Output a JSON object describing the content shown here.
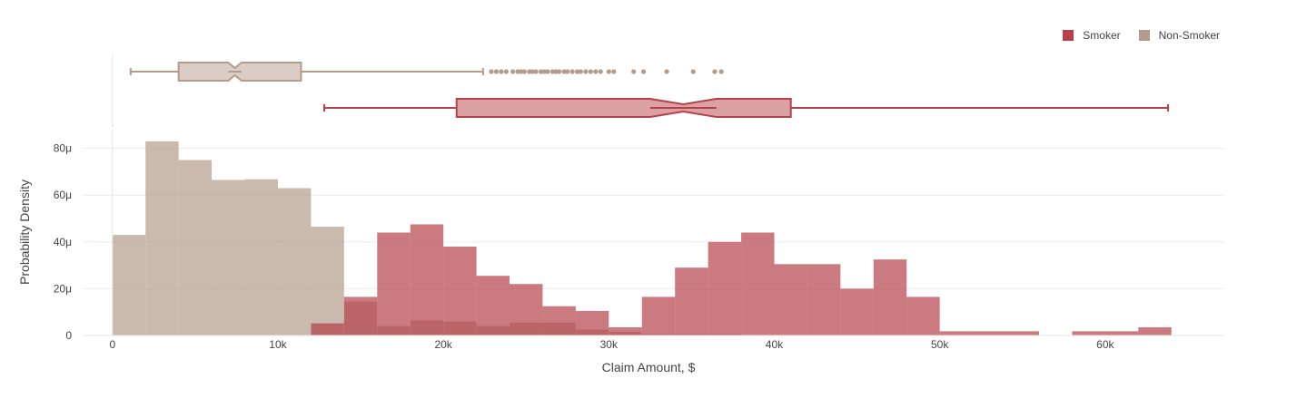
{
  "chart_data": {
    "type": "histogram",
    "xlabel": "Claim Amount, $",
    "ylabel": "Probability Density",
    "xlim": [
      -1800,
      67200
    ],
    "ylim": [
      0,
      88
    ],
    "y_unit": "μ",
    "x_ticks": [
      {
        "value": 0,
        "label": "0"
      },
      {
        "value": 10000,
        "label": "10k"
      },
      {
        "value": 20000,
        "label": "20k"
      },
      {
        "value": 30000,
        "label": "30k"
      },
      {
        "value": 40000,
        "label": "40k"
      },
      {
        "value": 50000,
        "label": "50k"
      },
      {
        "value": 60000,
        "label": "60k"
      }
    ],
    "y_ticks": [
      {
        "value": 0,
        "label": "0"
      },
      {
        "value": 20,
        "label": "20μ"
      },
      {
        "value": 40,
        "label": "40μ"
      },
      {
        "value": 60,
        "label": "60μ"
      },
      {
        "value": 80,
        "label": "80μ"
      }
    ],
    "grid": true,
    "legend_position": "top-right",
    "bin_width": 2000,
    "series": [
      {
        "name": "Smoker",
        "color": "#b5424a",
        "bins": [
          {
            "x0": 12000,
            "y": 5.2
          },
          {
            "x0": 14000,
            "y": 16.5
          },
          {
            "x0": 16000,
            "y": 44
          },
          {
            "x0": 18000,
            "y": 47.5
          },
          {
            "x0": 20000,
            "y": 38
          },
          {
            "x0": 22000,
            "y": 25.5
          },
          {
            "x0": 24000,
            "y": 22
          },
          {
            "x0": 26000,
            "y": 12.5
          },
          {
            "x0": 28000,
            "y": 10.5
          },
          {
            "x0": 30000,
            "y": 3.5
          },
          {
            "x0": 32000,
            "y": 16.5
          },
          {
            "x0": 34000,
            "y": 29
          },
          {
            "x0": 36000,
            "y": 40
          },
          {
            "x0": 38000,
            "y": 44
          },
          {
            "x0": 40000,
            "y": 30.5
          },
          {
            "x0": 42000,
            "y": 30.5
          },
          {
            "x0": 44000,
            "y": 20
          },
          {
            "x0": 46000,
            "y": 32.5
          },
          {
            "x0": 48000,
            "y": 16.5
          },
          {
            "x0": 50000,
            "y": 1.8
          },
          {
            "x0": 52000,
            "y": 1.8
          },
          {
            "x0": 54000,
            "y": 1.8
          },
          {
            "x0": 58000,
            "y": 1.8
          },
          {
            "x0": 60000,
            "y": 1.8
          },
          {
            "x0": 62000,
            "y": 3.5
          }
        ],
        "box": {
          "min": 12800,
          "q1": 20800,
          "median": 34500,
          "q3": 41000,
          "max": 63800,
          "notch_low": 32500,
          "notch_high": 36500
        }
      },
      {
        "name": "Non-Smoker",
        "color": "#b49c8c",
        "bins": [
          {
            "x0": 0,
            "y": 43
          },
          {
            "x0": 2000,
            "y": 83
          },
          {
            "x0": 4000,
            "y": 75
          },
          {
            "x0": 6000,
            "y": 66.5
          },
          {
            "x0": 8000,
            "y": 66.8
          },
          {
            "x0": 10000,
            "y": 63
          },
          {
            "x0": 12000,
            "y": 46.5
          },
          {
            "x0": 14000,
            "y": 14.5
          },
          {
            "x0": 16000,
            "y": 4
          },
          {
            "x0": 18000,
            "y": 6.5
          },
          {
            "x0": 20000,
            "y": 6
          },
          {
            "x0": 22000,
            "y": 4
          },
          {
            "x0": 24000,
            "y": 5.5
          },
          {
            "x0": 26000,
            "y": 5.5
          },
          {
            "x0": 28000,
            "y": 2.5
          },
          {
            "x0": 30000,
            "y": 1.5
          },
          {
            "x0": 32000,
            "y": 0.6
          },
          {
            "x0": 34000,
            "y": 0.6
          },
          {
            "x0": 36000,
            "y": 0.6
          }
        ],
        "box": {
          "min": 1100,
          "q1": 4000,
          "median": 7400,
          "q3": 11400,
          "max": 22400,
          "notch_low": 7000,
          "notch_high": 7800
        },
        "outliers": [
          22900,
          23200,
          23500,
          23800,
          24200,
          24500,
          24700,
          24900,
          25200,
          25400,
          25600,
          25900,
          26100,
          26300,
          26600,
          26800,
          27000,
          27300,
          27500,
          27800,
          28100,
          28300,
          28600,
          28900,
          29200,
          29500,
          30000,
          30300,
          31500,
          32100,
          33500,
          35100,
          36400,
          36800
        ]
      }
    ]
  }
}
